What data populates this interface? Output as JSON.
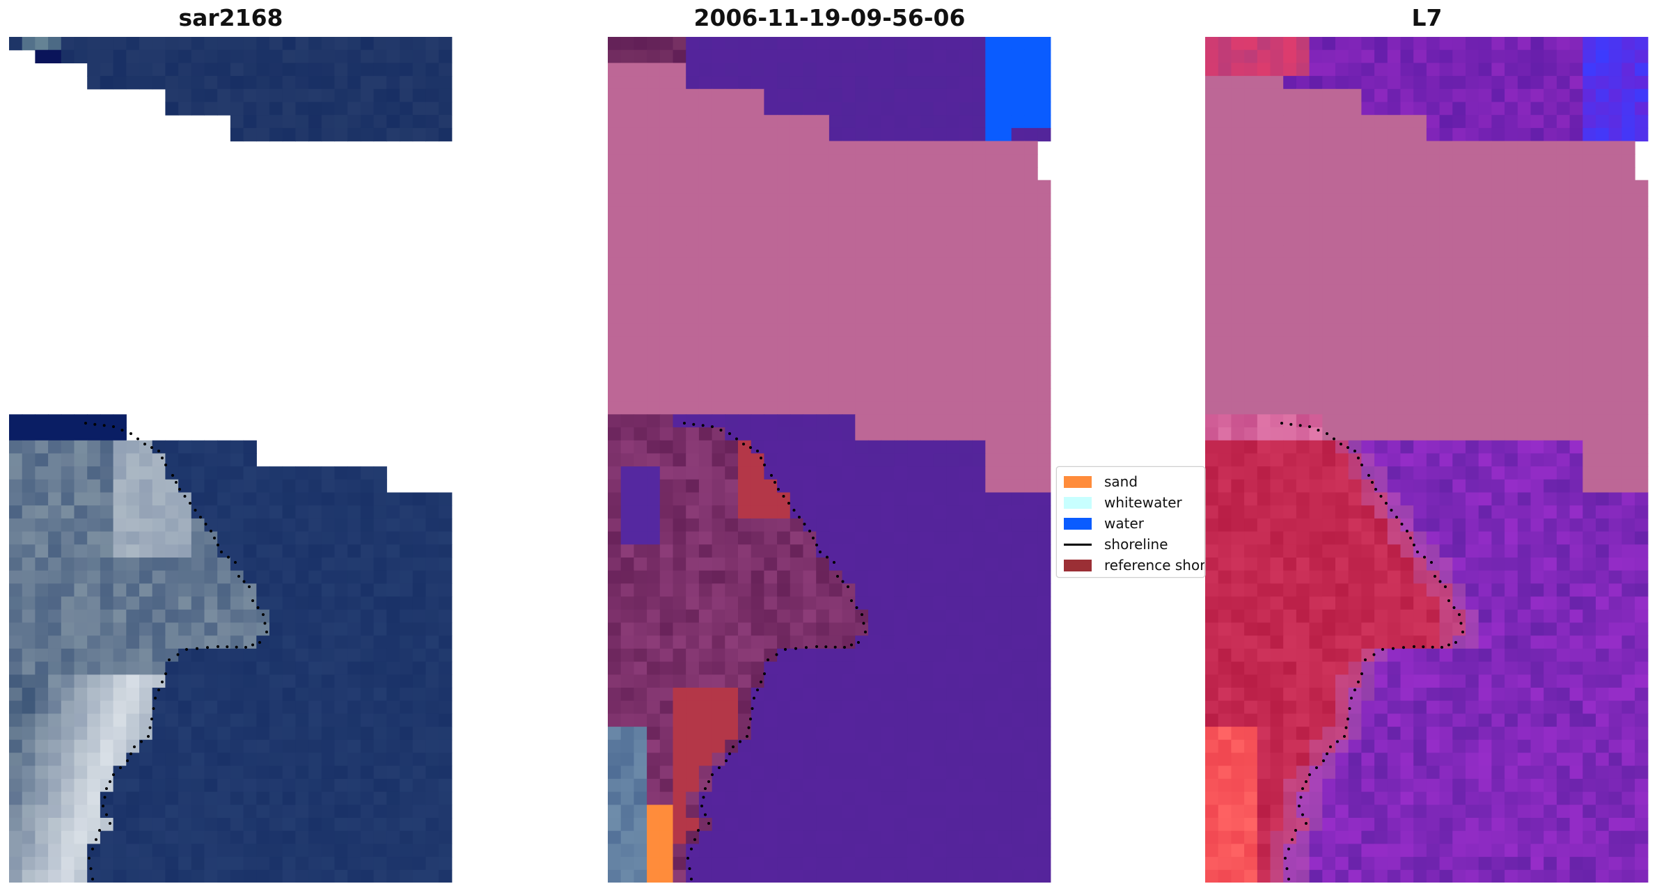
{
  "panels": [
    {
      "title": "sar2168",
      "scheme": "rgb"
    },
    {
      "title": "2006-11-19-09-56-06",
      "scheme": "classes"
    },
    {
      "title": "L7",
      "scheme": "index"
    }
  ],
  "legend": {
    "items": [
      {
        "label": "sand",
        "kind": "patch",
        "color": "#ff8c3b"
      },
      {
        "label": "whitewater",
        "kind": "patch",
        "color": "#c8ffff"
      },
      {
        "label": "water",
        "kind": "patch",
        "color": "#0a5cff"
      },
      {
        "label": "shoreline",
        "kind": "line",
        "color": "#000000"
      },
      {
        "label": "reference shoreline",
        "kind": "patch",
        "color": "#9b2f35"
      }
    ]
  },
  "colors": {
    "nodata": "#ffffff",
    "masked_land": "#bd6796",
    "water_class": "#55249b",
    "sand_class": "#ff8c3b",
    "shoreline_dots": "#000000"
  }
}
